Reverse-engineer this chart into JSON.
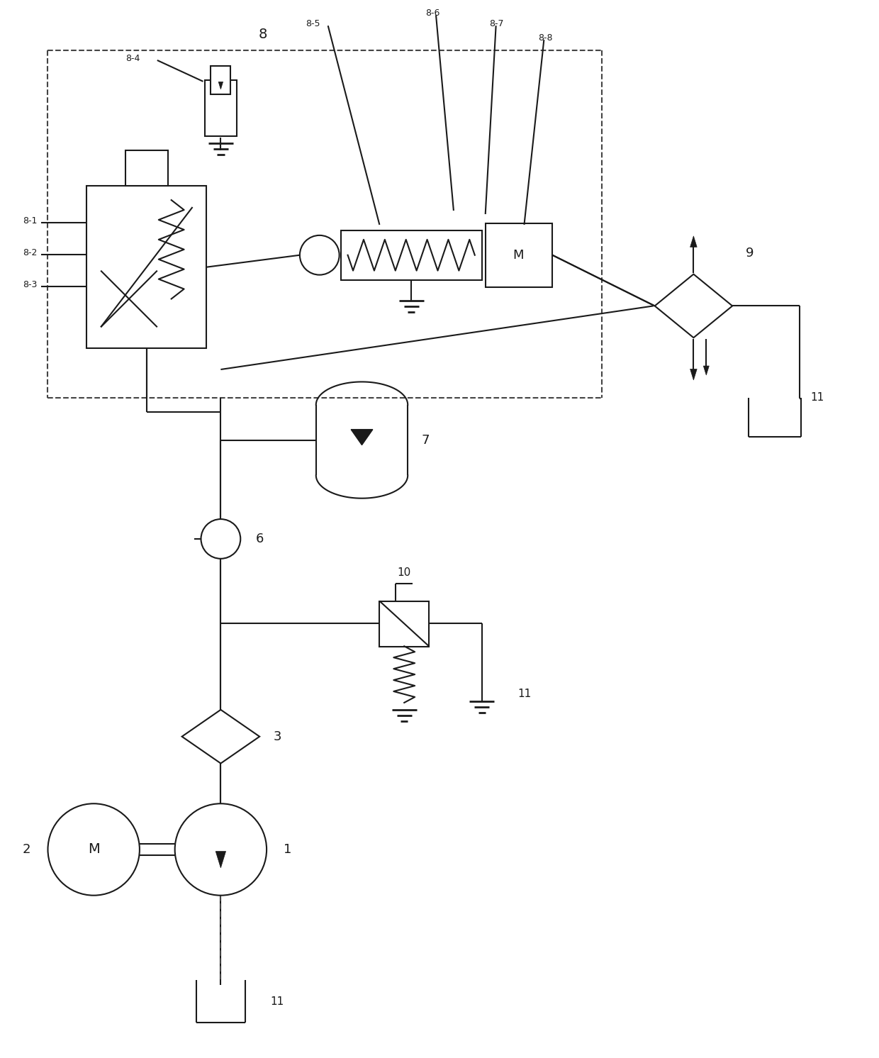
{
  "bg_color": "#ffffff",
  "line_color": "#1a1a1a",
  "dashed_color": "#444444",
  "figsize": [
    12.4,
    14.92
  ],
  "dpi": 100
}
